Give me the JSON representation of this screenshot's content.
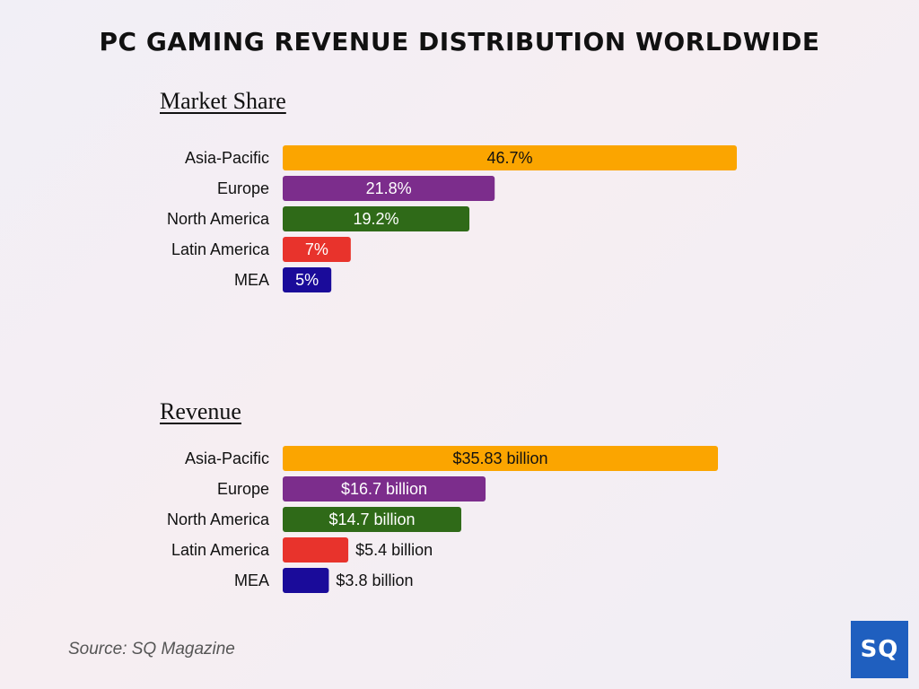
{
  "title": "PC GAMING REVENUE DISTRIBUTION WORLDWIDE",
  "source": "Source: SQ Magazine",
  "logo_text": "SQ",
  "colors": {
    "asia_pacific": "#fba500",
    "europe": "#7c2d8c",
    "north_america": "#2f6a18",
    "latin_america": "#e8332c",
    "mea": "#1a0b9a"
  },
  "chart_data": [
    {
      "type": "bar",
      "orientation": "horizontal",
      "title": "Market Share",
      "categories": [
        "Asia-Pacific",
        "Europe",
        "North America",
        "Latin America",
        "MEA"
      ],
      "values": [
        46.7,
        21.8,
        19.2,
        7,
        5
      ],
      "labels": [
        "46.7%",
        "21.8%",
        "19.2%",
        "7%",
        "5%"
      ],
      "unit": "%",
      "colors": [
        "#fba500",
        "#7c2d8c",
        "#2f6a18",
        "#e8332c",
        "#1a0b9a"
      ],
      "label_colors": [
        "#111111",
        "#ffffff",
        "#ffffff",
        "#ffffff",
        "#ffffff"
      ],
      "xlim": [
        0,
        46.7
      ],
      "grid": false,
      "legend": "none"
    },
    {
      "type": "bar",
      "orientation": "horizontal",
      "title": "Revenue",
      "categories": [
        "Asia-Pacific",
        "Europe",
        "North America",
        "Latin America",
        "MEA"
      ],
      "values": [
        35.83,
        16.7,
        14.7,
        5.4,
        3.8
      ],
      "labels": [
        "$35.83 billion",
        "$16.7 billion",
        "$14.7 billion",
        "$5.4 billion",
        "$3.8 billion"
      ],
      "unit": "billion USD",
      "colors": [
        "#fba500",
        "#7c2d8c",
        "#2f6a18",
        "#e8332c",
        "#1a0b9a"
      ],
      "label_colors": [
        "#111111",
        "#ffffff",
        "#ffffff",
        "#111111",
        "#111111"
      ],
      "label_position": [
        "inside",
        "inside",
        "inside",
        "outside",
        "outside"
      ],
      "xlim": [
        0,
        35.83
      ],
      "grid": false,
      "legend": "none"
    }
  ]
}
